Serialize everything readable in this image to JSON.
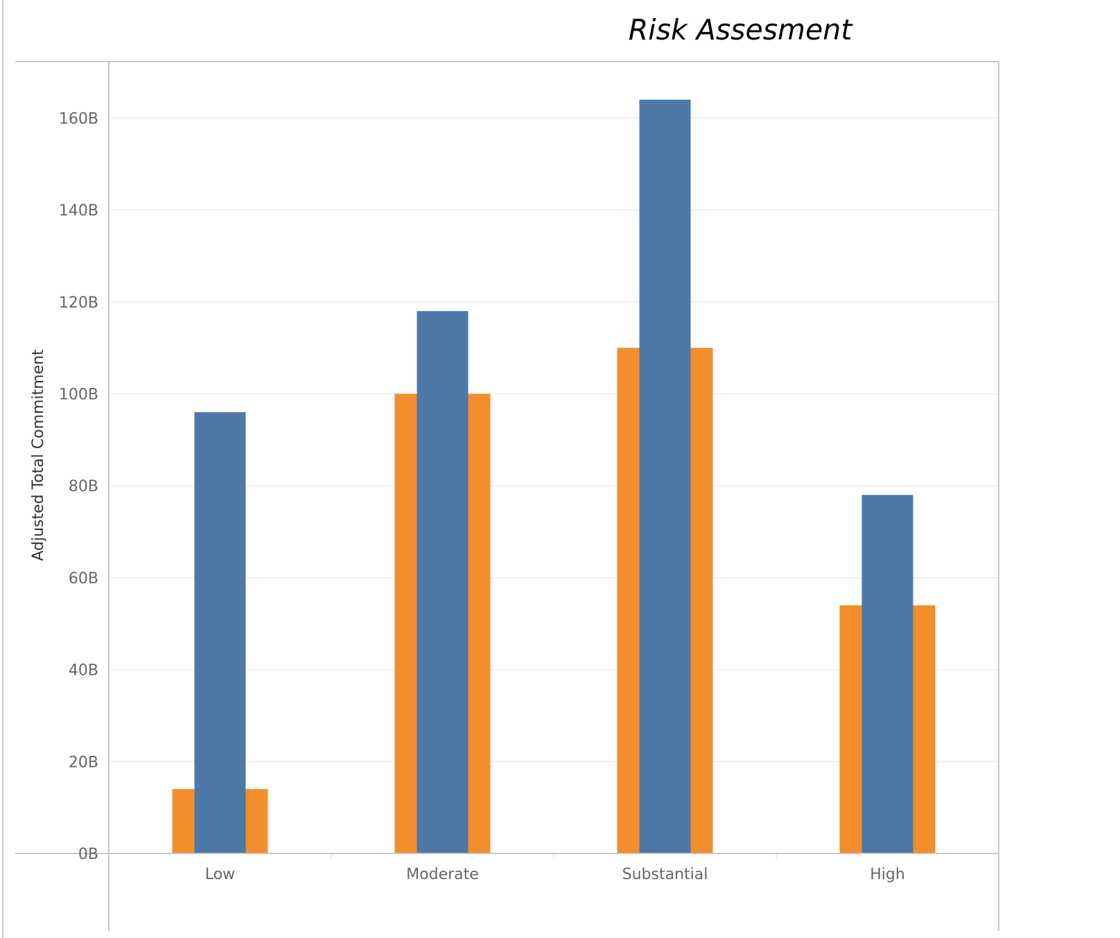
{
  "chart_data": {
    "type": "bar",
    "title": "Risk Assesment",
    "xlabel": "",
    "ylabel": "Adjusted Total Commitment",
    "categories": [
      "Low",
      "Moderate",
      "Substantial",
      "High"
    ],
    "ylim": [
      0,
      172
    ],
    "y_ticks": [
      0,
      20,
      40,
      60,
      80,
      100,
      120,
      140,
      160
    ],
    "y_tick_labels": [
      "0B",
      "20B",
      "40B",
      "60B",
      "80B",
      "100B",
      "120B",
      "140B",
      "160B"
    ],
    "grid": true,
    "legend": "none",
    "value_unit": "B",
    "series": [
      {
        "color": "#F28E2B",
        "values": [
          14,
          100,
          110,
          54
        ]
      },
      {
        "color": "#4E79A7",
        "values": [
          96,
          118,
          164,
          78
        ]
      }
    ]
  }
}
